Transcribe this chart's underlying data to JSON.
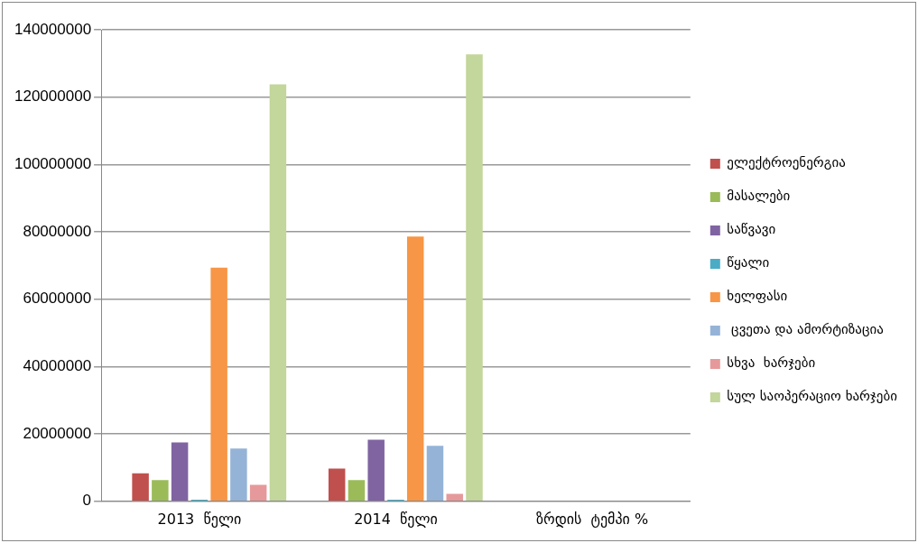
{
  "chart_data": {
    "type": "bar",
    "categories": [
      "2013  წელი",
      "2014  წელი",
      "ზრდის  ტემპი %"
    ],
    "series": [
      {
        "color": "#4f81bd",
        "values": [
          0,
          0,
          0
        ]
      },
      {
        "name": "ელექტროენერგია",
        "color": "#c0504d",
        "values": [
          8300000,
          9700000,
          0
        ]
      },
      {
        "name": "მასალები",
        "color": "#9bbb59",
        "values": [
          6300000,
          6300000,
          0
        ]
      },
      {
        "name": "საწვავი",
        "color": "#8064a2",
        "values": [
          17500000,
          18300000,
          0
        ]
      },
      {
        "name": "წყალი",
        "color": "#4bacc6",
        "values": [
          500000,
          500000,
          0
        ]
      },
      {
        "name": "ხელფასი",
        "color": "#f79646",
        "values": [
          69400000,
          78600000,
          0
        ]
      },
      {
        "name": " ცვეთა და ამორტიზაცია",
        "color": "#95b3d7",
        "values": [
          15700000,
          16500000,
          0
        ]
      },
      {
        "name": "სხვა  ხარჯები",
        "color": "#e6999a",
        "values": [
          4900000,
          2200000,
          0
        ]
      },
      {
        "name": "სულ საოპერაციო ხარჯები",
        "color": "#c3d69b",
        "values": [
          123800000,
          132700000,
          0
        ]
      }
    ],
    "ylim": [
      0,
      140000000
    ],
    "yticks": [
      0,
      20000000,
      40000000,
      60000000,
      80000000,
      100000000,
      120000000,
      140000000
    ],
    "grid": "y",
    "legend": "right"
  }
}
